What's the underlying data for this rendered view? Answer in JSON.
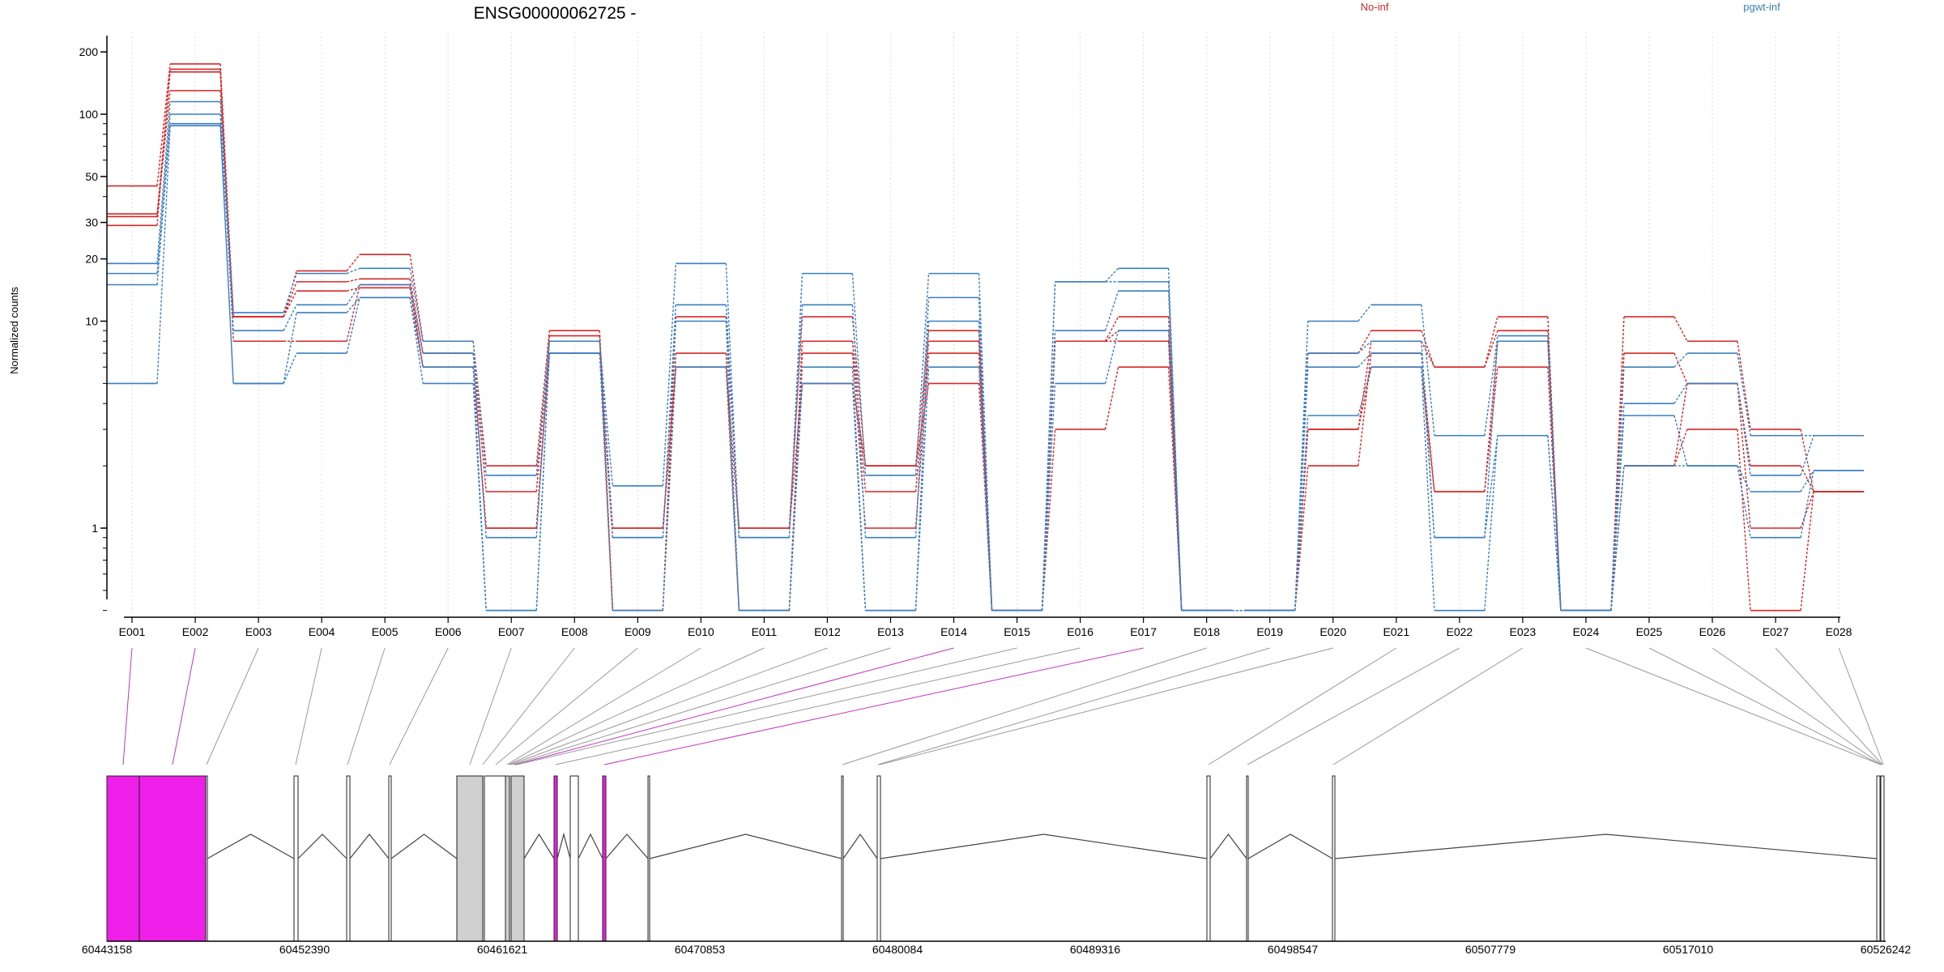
{
  "chart_data": {
    "type": "line",
    "title": "ENSG00000062725 -",
    "xlabel": "",
    "ylabel": "Normalized counts",
    "y_scale": "log",
    "ylim": [
      0.4,
      230
    ],
    "y_ticks": [
      1,
      10,
      20,
      30,
      50,
      100,
      200
    ],
    "grid": "vertical-dotted",
    "legend_placement": "top",
    "categories": [
      "E001",
      "E002",
      "E003",
      "E004",
      "E005",
      "E006",
      "E007",
      "E008",
      "E009",
      "E010",
      "E011",
      "E012",
      "E013",
      "E014",
      "E015",
      "E016",
      "E017",
      "E018",
      "E019",
      "E020",
      "E021",
      "E022",
      "E023",
      "E024",
      "E025",
      "E026",
      "E027",
      "E028"
    ],
    "groups": [
      {
        "name": "No-inf",
        "color": "#d62728"
      },
      {
        "name": "pgwt-inf",
        "color": "#3a7fbf"
      }
    ],
    "series": [
      {
        "group": "No-inf",
        "values": [
          45,
          175,
          10.5,
          17.5,
          21,
          8,
          2,
          9,
          0.4,
          10.5,
          1,
          10.5,
          2,
          9,
          0.4,
          8,
          10.5,
          0.4,
          0.4,
          7,
          9,
          6,
          10.5,
          0.4,
          10.5,
          8,
          3,
          1.5
        ]
      },
      {
        "group": "No-inf",
        "values": [
          33,
          160,
          10.5,
          15.5,
          16,
          7,
          1.5,
          8.5,
          0.4,
          7,
          0.4,
          8,
          1.5,
          8,
          0.4,
          8,
          9,
          0.4,
          0.4,
          3,
          8,
          6,
          9,
          0.4,
          7,
          5,
          2,
          1.5
        ]
      },
      {
        "group": "No-inf",
        "values": [
          32,
          130,
          10.5,
          14,
          14.5,
          6,
          1,
          8,
          1,
          6,
          0.4,
          7,
          1,
          7,
          0.4,
          8,
          8,
          0.4,
          0.4,
          2,
          7,
          1.5,
          8,
          0.4,
          2,
          5,
          1,
          1.5
        ]
      },
      {
        "group": "No-inf",
        "values": [
          29,
          165,
          8,
          8,
          15,
          6,
          1,
          7,
          1,
          6,
          1,
          5,
          2,
          5,
          0.4,
          3,
          6,
          0.4,
          0.4,
          3,
          6,
          1.5,
          6,
          0.4,
          2,
          3,
          0.4,
          1.5
        ]
      },
      {
        "group": "pgwt-inf",
        "values": [
          19,
          115,
          11,
          17,
          18,
          8,
          1.8,
          8,
          1.6,
          19,
          0.9,
          17,
          1.8,
          17,
          0.4,
          15.5,
          18,
          0.4,
          0.4,
          10,
          12,
          2.8,
          8.5,
          0.4,
          6,
          7,
          2.8,
          2.8
        ]
      },
      {
        "group": "pgwt-inf",
        "values": [
          17,
          100,
          9,
          12,
          15,
          7,
          0.9,
          8,
          0.9,
          12,
          0.9,
          12,
          0.9,
          13,
          0.4,
          15.5,
          15.5,
          0.4,
          0.4,
          7,
          8,
          0.9,
          8,
          0.4,
          4,
          5,
          1.8,
          2.8
        ]
      },
      {
        "group": "pgwt-inf",
        "values": [
          15,
          90,
          5,
          11,
          13,
          6,
          0.4,
          7,
          0.9,
          10,
          0.4,
          6,
          0.4,
          10,
          0.4,
          9,
          14,
          0.4,
          0.4,
          6,
          7,
          0.9,
          2.8,
          0.4,
          3.5,
          2,
          1.5,
          1.9
        ]
      },
      {
        "group": "pgwt-inf",
        "values": [
          5,
          88,
          5,
          7,
          13,
          5,
          0.4,
          7,
          0.4,
          6,
          0.4,
          5,
          0.4,
          6,
          0.4,
          5,
          9,
          0.4,
          0.4,
          3.5,
          6,
          0.4,
          2.8,
          0.4,
          2,
          2,
          0.9,
          1.9
        ]
      }
    ],
    "gene_model": {
      "genomic_ticks": [
        "60443158",
        "60452390",
        "60461621",
        "60470853",
        "60480084",
        "60489316",
        "60498547",
        "60507779",
        "60517010",
        "60526242"
      ],
      "exon_highlight_color": "#ee1fe8",
      "exon_gray_color": "#cfcfcf"
    }
  }
}
